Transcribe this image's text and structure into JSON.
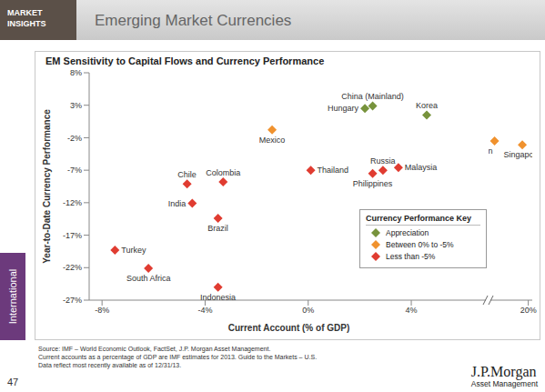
{
  "page": {
    "header_tag": "MARKET INSIGHTS",
    "header_title": "Emerging Market Currencies",
    "side_tab": "International",
    "page_number": "47",
    "footnotes": [
      "Source: IMF – World Economic Outlook, FactSet, J.P. Morgan Asset Management.",
      "Current accounts as a percentage of GDP are IMF estimates for 2013. Guide to the Markets – U.S.",
      "Data reflect most recently available as of 12/31/13."
    ],
    "logo": "J.P.Morgan",
    "logo_subtitle": "Asset Management"
  },
  "chart_data": [
    {
      "type": "scatter",
      "title": "EM Sensitivity to Capital Flows and Currency Performance",
      "x_label": "Current Account (% of GDP)",
      "y_label": "Year-to-Date Currency Performance",
      "legend": "bottom right",
      "legend_title": "Currency Performance Key",
      "xlim": [
        -8.5,
        7
      ],
      "xticks": [
        {
          "value": -8,
          "label": "-8%"
        },
        {
          "value": -4,
          "label": "-4%"
        },
        {
          "value": 0,
          "label": "0%"
        },
        {
          "value": 4,
          "label": "4%"
        }
      ],
      "ylim": [
        -27,
        8
      ],
      "yticks": [
        {
          "value": 8,
          "label": "8%"
        },
        {
          "value": 3,
          "label": "3%"
        },
        {
          "value": -2,
          "label": "-2%"
        },
        {
          "value": -7,
          "label": "-7%"
        },
        {
          "value": -12,
          "label": "-12%"
        },
        {
          "value": -17,
          "label": "-17%"
        },
        {
          "value": -22,
          "label": "-22%"
        },
        {
          "value": -27,
          "label": "-27%"
        }
      ],
      "series": [
        {
          "name": "Appreciation",
          "color": "#77933c",
          "marker": "diamond",
          "x": [
            2.2,
            2.5,
            4.6
          ],
          "values": [
            2.5,
            2.9,
            1.5
          ],
          "labels": [
            "Hungary",
            "China (Mainland)",
            "Korea"
          ]
        },
        {
          "name": "Between 0% to -5%",
          "color": "#f0922e",
          "marker": "diamond",
          "x": [
            -1.4
          ],
          "values": [
            -0.8
          ],
          "labels": [
            "Mexico"
          ]
        },
        {
          "name": "Less than -5%",
          "color": "#e03c31",
          "marker": "diamond",
          "x": [
            0.1,
            2.5,
            2.9,
            3.5,
            -4.7,
            -3.3,
            -4.5,
            -3.5,
            -7.5,
            -6.2,
            -3.5
          ],
          "values": [
            -7.0,
            -7.5,
            -7.0,
            -6.6,
            -9.1,
            -8.8,
            -12.1,
            -14.4,
            -19.3,
            -22.1,
            -25.0
          ],
          "labels": [
            "Thailand",
            "Philippines",
            "Russia",
            "Malaysia",
            "Chile",
            "Colombia",
            "India",
            "Brazil",
            "Turkey",
            "South Africa",
            "Indonesia"
          ]
        }
      ]
    },
    {
      "type": "scatter",
      "xlim": [
        10,
        21
      ],
      "xticks": [
        {
          "value": 20,
          "label": "20%"
        }
      ],
      "ylim": [
        -27,
        8
      ],
      "tick_labels": "x",
      "series": [
        {
          "name": "Between 0% to -5%",
          "color": "#f0922e",
          "marker": "diamond",
          "x": [
            11.5,
            18.5
          ],
          "values": [
            -2.5,
            -3.1
          ],
          "labels": [
            "Taiwan",
            "Singapore"
          ]
        }
      ]
    }
  ]
}
